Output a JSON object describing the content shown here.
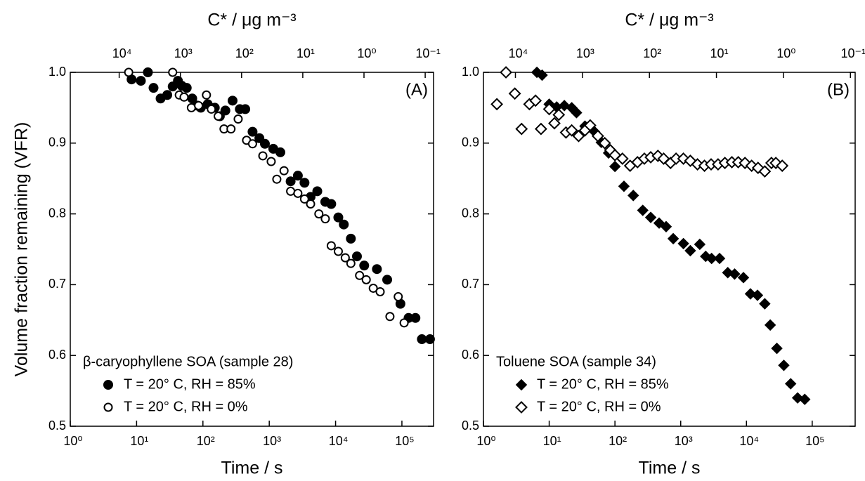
{
  "chart_data": [
    {
      "type": "scatter",
      "panel_label": "(A)",
      "legend_title": "β-caryophyllene SOA (sample 28)",
      "legend": "lower left",
      "xlabel": "Time / s",
      "ylabel": "Volume fraction remaining (VFR)",
      "x2label": "C* / μg m⁻³",
      "xscale": "log",
      "x2scale": "log",
      "xlim": [
        1,
        300000
      ],
      "xticks": [
        {
          "value": 1,
          "label": "10⁰"
        },
        {
          "value": 10,
          "label": "10¹"
        },
        {
          "value": 100,
          "label": "10²"
        },
        {
          "value": 1000,
          "label": "10³"
        },
        {
          "value": 10000,
          "label": "10⁴"
        },
        {
          "value": 100000,
          "label": "10⁵"
        }
      ],
      "x2lim": [
        63000,
        0.073
      ],
      "x2ticks": [
        {
          "value": 10000,
          "label": "10⁴"
        },
        {
          "value": 1000,
          "label": "10³"
        },
        {
          "value": 100,
          "label": "10²"
        },
        {
          "value": 10,
          "label": "10¹"
        },
        {
          "value": 1,
          "label": "10⁰"
        },
        {
          "value": 0.1,
          "label": "10⁻¹"
        }
      ],
      "ylim": [
        0.5,
        1
      ],
      "yticks": [
        0.5,
        0.6,
        0.7,
        0.8,
        0.9,
        {
          "value": 1,
          "label": "1.0"
        }
      ],
      "series": [
        {
          "name": "T = 20° C, RH = 85%",
          "marker": "circle",
          "filled": true,
          "color": "#000000",
          "x": [
            8.4,
            11.6,
            14.8,
            18,
            23,
            29,
            35,
            42,
            48,
            57,
            69,
            82,
            93,
            118,
            151,
            180,
            218,
            280,
            360,
            435,
            560,
            710,
            860,
            1150,
            1470,
            2100,
            2700,
            3400,
            4200,
            5300,
            7000,
            8600,
            11000,
            13300,
            17000,
            21000,
            27000,
            42000,
            60000,
            95000,
            126000,
            160000,
            200000,
            265000
          ],
          "values": [
            0.99,
            0.988,
            1.0,
            0.978,
            0.963,
            0.968,
            0.98,
            0.988,
            0.981,
            0.978,
            0.963,
            0.953,
            0.95,
            0.955,
            0.95,
            0.938,
            0.946,
            0.96,
            0.948,
            0.948,
            0.916,
            0.907,
            0.899,
            0.892,
            0.887,
            0.846,
            0.854,
            0.844,
            0.824,
            0.832,
            0.817,
            0.814,
            0.795,
            0.785,
            0.765,
            0.74,
            0.727,
            0.722,
            0.707,
            0.673,
            0.653,
            0.653,
            0.623,
            0.623
          ]
        },
        {
          "name": "T = 20° C, RH = 0%",
          "marker": "circle",
          "filled": false,
          "color": "#000000",
          "x": [
            7.6,
            35,
            44,
            52,
            67,
            86,
            113,
            134,
            170,
            208,
            265,
            340,
            455,
            560,
            800,
            1070,
            1300,
            1670,
            2100,
            2700,
            3400,
            4200,
            5600,
            7000,
            8600,
            11000,
            14000,
            17000,
            23000,
            29000,
            37000,
            47000,
            66000,
            88000,
            108000
          ],
          "values": [
            1.0,
            1.0,
            0.968,
            0.965,
            0.95,
            0.953,
            0.968,
            0.948,
            0.938,
            0.92,
            0.92,
            0.934,
            0.904,
            0.899,
            0.882,
            0.874,
            0.849,
            0.861,
            0.832,
            0.829,
            0.821,
            0.814,
            0.8,
            0.793,
            0.755,
            0.747,
            0.738,
            0.73,
            0.713,
            0.707,
            0.695,
            0.69,
            0.655,
            0.683,
            0.646
          ]
        }
      ]
    },
    {
      "type": "scatter",
      "panel_label": "(B)",
      "legend_title": "Toluene SOA (sample 34)",
      "legend": "lower left",
      "xlabel": "Time / s",
      "x2label": "C* / μg m⁻³",
      "xscale": "log",
      "x2scale": "log",
      "xlim": [
        1,
        450000
      ],
      "xticks": [
        {
          "value": 1,
          "label": "10⁰"
        },
        {
          "value": 10,
          "label": "10¹"
        },
        {
          "value": 100,
          "label": "10²"
        },
        {
          "value": 1000,
          "label": "10³"
        },
        {
          "value": 10000,
          "label": "10⁴"
        },
        {
          "value": 100000,
          "label": "10⁵"
        }
      ],
      "x2lim": [
        30000,
        0.085
      ],
      "x2ticks": [
        {
          "value": 10000,
          "label": "10⁴"
        },
        {
          "value": 1000,
          "label": "10³"
        },
        {
          "value": 100,
          "label": "10²"
        },
        {
          "value": 10,
          "label": "10¹"
        },
        {
          "value": 1,
          "label": "10⁰"
        },
        {
          "value": 0.1,
          "label": "10⁻¹"
        }
      ],
      "ylim": [
        0.5,
        1
      ],
      "yticks": [
        0.5,
        0.6,
        0.7,
        0.8,
        0.9,
        {
          "value": 1,
          "label": "1.0"
        }
      ],
      "series": [
        {
          "name": "T = 20° C, RH = 85%",
          "marker": "diamond",
          "filled": true,
          "color": "#000000",
          "x": [
            6.5,
            7.8,
            10,
            13,
            17,
            22,
            26,
            35,
            49,
            62,
            80,
            100,
            137,
            190,
            265,
            350,
            470,
            600,
            770,
            1100,
            1400,
            1950,
            2400,
            2950,
            3900,
            5200,
            6600,
            9000,
            11500,
            14700,
            19000,
            23000,
            29000,
            37000,
            47000,
            60000,
            77000
          ],
          "values": [
            1.0,
            0.996,
            0.955,
            0.951,
            0.953,
            0.95,
            0.943,
            0.924,
            0.916,
            0.901,
            0.886,
            0.867,
            0.839,
            0.826,
            0.805,
            0.795,
            0.787,
            0.782,
            0.765,
            0.758,
            0.748,
            0.757,
            0.74,
            0.737,
            0.737,
            0.717,
            0.715,
            0.71,
            0.687,
            0.685,
            0.673,
            0.643,
            0.61,
            0.586,
            0.56,
            0.54,
            0.538
          ]
        },
        {
          "name": "T = 20° C, RH = 0%",
          "marker": "diamond",
          "filled": false,
          "color": "#000000",
          "x": [
            1.6,
            2.2,
            3.0,
            3.8,
            5.0,
            6.2,
            7.5,
            10,
            12,
            14,
            18,
            22,
            28,
            35,
            42,
            55,
            70,
            85,
            100,
            130,
            170,
            220,
            280,
            350,
            450,
            550,
            700,
            850,
            1100,
            1400,
            1800,
            2300,
            2900,
            3700,
            4700,
            6000,
            7500,
            9500,
            12000,
            15000,
            19000,
            24000,
            28000,
            35000
          ],
          "values": [
            0.955,
            1.0,
            0.97,
            0.92,
            0.955,
            0.96,
            0.92,
            0.948,
            0.928,
            0.94,
            0.915,
            0.918,
            0.91,
            0.918,
            0.925,
            0.91,
            0.9,
            0.89,
            0.883,
            0.878,
            0.868,
            0.873,
            0.878,
            0.88,
            0.882,
            0.878,
            0.872,
            0.878,
            0.878,
            0.875,
            0.87,
            0.868,
            0.87,
            0.87,
            0.872,
            0.873,
            0.873,
            0.872,
            0.868,
            0.865,
            0.86,
            0.872,
            0.872,
            0.868
          ]
        }
      ]
    }
  ]
}
